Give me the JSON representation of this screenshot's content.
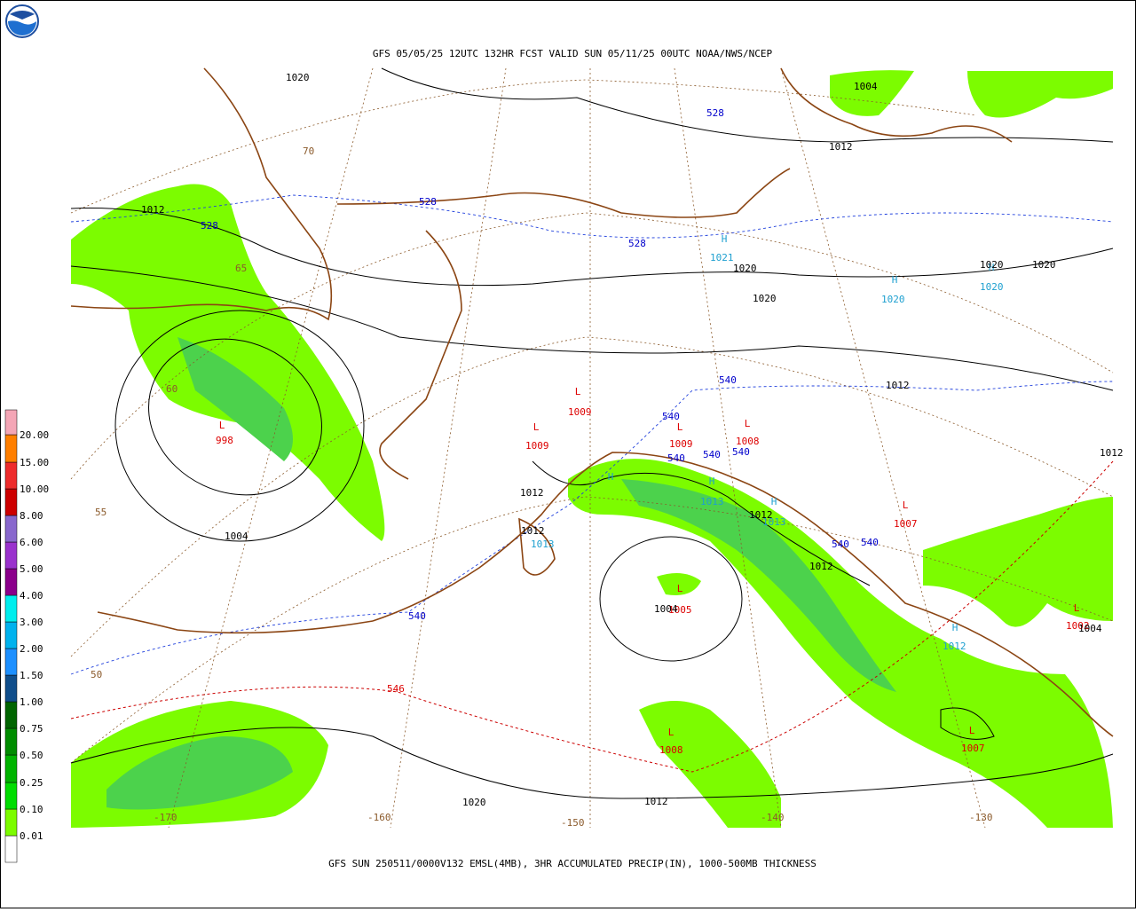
{
  "header": {
    "title": "GFS 05/05/25 12UTC 132HR FCST VALID SUN 05/11/25 00UTC NOAA/NWS/NCEP"
  },
  "footer": {
    "caption": "GFS SUN 250511/0000V132 EMSL(4MB), 3HR ACCUMULATED PRECIP(IN), 1000-500MB THICKNESS"
  },
  "legend": {
    "items": [
      {
        "label": "0.01",
        "color": "#7cfc00"
      },
      {
        "label": "0.10",
        "color": "#00dd00"
      },
      {
        "label": "0.25",
        "color": "#00b400"
      },
      {
        "label": "0.50",
        "color": "#008c00"
      },
      {
        "label": "0.75",
        "color": "#006400"
      },
      {
        "label": "1.00",
        "color": "#104e8b"
      },
      {
        "label": "1.50",
        "color": "#1e90ff"
      },
      {
        "label": "2.00",
        "color": "#00b2ee"
      },
      {
        "label": "3.00",
        "color": "#00eeee"
      },
      {
        "label": "4.00",
        "color": "#8b008b"
      },
      {
        "label": "5.00",
        "color": "#9a32cd"
      },
      {
        "label": "6.00",
        "color": "#8968cd"
      },
      {
        "label": "8.00",
        "color": "#cd0000"
      },
      {
        "label": "10.00",
        "color": "#ee2c2c"
      },
      {
        "label": "15.00",
        "color": "#ff7f00"
      },
      {
        "label": "20.00",
        "color": "#f4a6b6"
      }
    ]
  },
  "pressure_centers": [
    {
      "symbol": "L",
      "value": "998",
      "color": "#dd0000"
    },
    {
      "symbol": "L",
      "value": "1009",
      "color": "#dd0000"
    },
    {
      "symbol": "L",
      "value": "1009",
      "color": "#dd0000"
    },
    {
      "symbol": "L",
      "value": "1009",
      "color": "#dd0000"
    },
    {
      "symbol": "L",
      "value": "1008",
      "color": "#dd0000"
    },
    {
      "symbol": "L",
      "value": "1005",
      "color": "#dd0000"
    },
    {
      "symbol": "L",
      "value": "1007",
      "color": "#dd0000"
    },
    {
      "symbol": "L",
      "value": "1008",
      "color": "#dd0000"
    },
    {
      "symbol": "L",
      "value": "1007",
      "color": "#dd0000"
    },
    {
      "symbol": "L",
      "value": "1002",
      "color": "#dd0000"
    },
    {
      "symbol": "H",
      "value": "1021",
      "color": "#1ea0d0"
    },
    {
      "symbol": "H",
      "value": "1020",
      "color": "#1ea0d0"
    },
    {
      "symbol": "H",
      "value": "1020",
      "color": "#1ea0d0"
    },
    {
      "symbol": "H",
      "value": "1013",
      "color": "#1ea0d0"
    },
    {
      "symbol": "H",
      "value": "1013",
      "color": "#1ea0d0"
    },
    {
      "symbol": "H",
      "value": "1012",
      "color": "#1ea0d0"
    },
    {
      "symbol": "H",
      "value": "1013",
      "color": "#1ea0d0"
    }
  ],
  "isobar_labels": [
    "1020",
    "1004",
    "1012",
    "1012",
    "1020",
    "1020",
    "1020",
    "1020",
    "1012",
    "1012",
    "1012",
    "1012",
    "1012",
    "1004",
    "1004",
    "1004",
    "1020",
    "1012",
    "1012"
  ],
  "thickness_labels": [
    {
      "text": "528",
      "color": "#0000cc"
    },
    {
      "text": "528",
      "color": "#0000cc"
    },
    {
      "text": "528",
      "color": "#0000cc"
    },
    {
      "text": "528",
      "color": "#0000cc"
    },
    {
      "text": "540",
      "color": "#0000cc"
    },
    {
      "text": "540",
      "color": "#0000cc"
    },
    {
      "text": "540",
      "color": "#0000cc"
    },
    {
      "text": "540",
      "color": "#0000cc"
    },
    {
      "text": "540",
      "color": "#0000cc"
    },
    {
      "text": "540",
      "color": "#0000cc"
    },
    {
      "text": "540",
      "color": "#0000cc"
    },
    {
      "text": "540",
      "color": "#0000cc"
    },
    {
      "text": "546",
      "color": "#dd0000"
    }
  ],
  "grid_labels": [
    "70",
    "65",
    "60",
    "55",
    "50",
    "-170",
    "-160",
    "-150",
    "-140",
    "-130"
  ]
}
